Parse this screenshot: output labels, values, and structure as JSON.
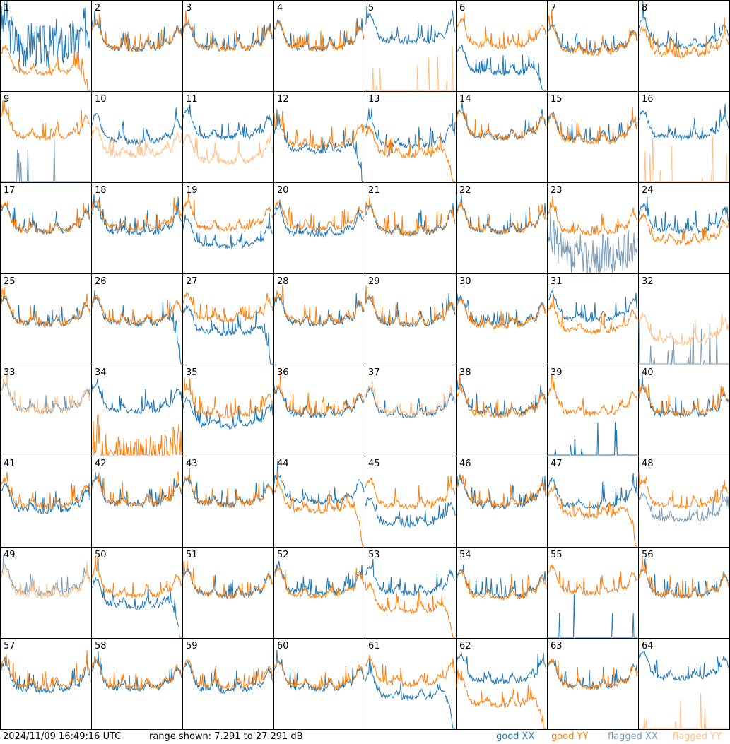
{
  "footer": {
    "timestamp": "2024/11/09 16:49:16 UTC",
    "range_text": "range shown: 7.291 to 27.291 dB",
    "legend": [
      {
        "label": "good XX",
        "color": "#1f77b4"
      },
      {
        "label": "good YY",
        "color": "#ff7f0e"
      },
      {
        "label": "flagged XX",
        "color": "#7a9bb5"
      },
      {
        "label": "flagged YY",
        "color": "#ffbf87"
      }
    ]
  },
  "chart_data": {
    "type": "line",
    "layout": "8x8 small multiples",
    "range_db": [
      7.291,
      27.291
    ],
    "colors": {
      "good_xx": "#1f77b4",
      "good_yy": "#ff7f0e",
      "flagged_xx": "#7a9bb5",
      "flagged_yy": "#ffbf87"
    },
    "panels": [
      {
        "label": "1",
        "xx": "good",
        "yy": "good",
        "xx_level": 0.55,
        "yy_level": 0.25,
        "xx_drop": false,
        "yy_drop": true,
        "xx_spiky": true,
        "yy_spiky": false
      },
      {
        "label": "2",
        "xx": "good",
        "yy": "good",
        "xx_level": 0.52,
        "yy_level": 0.52
      },
      {
        "label": "3",
        "xx": "good",
        "yy": "good",
        "xx_level": 0.52,
        "yy_level": 0.52
      },
      {
        "label": "4",
        "xx": "good",
        "yy": "good",
        "xx_level": 0.52,
        "yy_level": 0.52
      },
      {
        "label": "5",
        "xx": "good",
        "yy": "flagged",
        "xx_level": 0.6,
        "yy_level": 0.0,
        "yy_flat": true
      },
      {
        "label": "6",
        "xx": "good",
        "yy": "good",
        "xx_level": 0.25,
        "yy_level": 0.55,
        "xx_drop": true
      },
      {
        "label": "7",
        "xx": "good",
        "yy": "good",
        "xx_level": 0.5,
        "yy_level": 0.48
      },
      {
        "label": "8",
        "xx": "good",
        "yy": "good",
        "xx_level": 0.55,
        "yy_level": 0.45
      },
      {
        "label": "9",
        "xx": "flagged",
        "yy": "good",
        "xx_level": 0.0,
        "yy_level": 0.55,
        "xx_flat": true
      },
      {
        "label": "10",
        "xx": "good",
        "yy": "flagged",
        "xx_level": 0.5,
        "yy_level": 0.35
      },
      {
        "label": "11",
        "xx": "good",
        "yy": "flagged",
        "xx_level": 0.55,
        "yy_level": 0.28
      },
      {
        "label": "12",
        "xx": "good",
        "yy": "good",
        "xx_level": 0.4,
        "yy_level": 0.45,
        "xx_drop": true
      },
      {
        "label": "13",
        "xx": "good",
        "yy": "good",
        "xx_level": 0.45,
        "yy_level": 0.35,
        "yy_drop": true
      },
      {
        "label": "14",
        "xx": "good",
        "yy": "good",
        "xx_level": 0.55,
        "yy_level": 0.55
      },
      {
        "label": "15",
        "xx": "good",
        "yy": "good",
        "xx_level": 0.52,
        "yy_level": 0.5
      },
      {
        "label": "16",
        "xx": "good",
        "yy": "flagged",
        "xx_level": 0.55,
        "yy_level": 0.0,
        "yy_flat": true
      },
      {
        "label": "17",
        "xx": "good",
        "yy": "good",
        "xx_level": 0.52,
        "yy_level": 0.52
      },
      {
        "label": "18",
        "xx": "good",
        "yy": "good",
        "xx_level": 0.5,
        "yy_level": 0.55
      },
      {
        "label": "19",
        "xx": "good",
        "yy": "good",
        "xx_level": 0.35,
        "yy_level": 0.55
      },
      {
        "label": "20",
        "xx": "good",
        "yy": "good",
        "xx_level": 0.48,
        "yy_level": 0.55
      },
      {
        "label": "21",
        "xx": "good",
        "yy": "good",
        "xx_level": 0.5,
        "yy_level": 0.5
      },
      {
        "label": "22",
        "xx": "good",
        "yy": "good",
        "xx_level": 0.52,
        "yy_level": 0.52
      },
      {
        "label": "23",
        "xx": "flagged",
        "yy": "good",
        "xx_level": 0.2,
        "yy_level": 0.5,
        "xx_spiky": true
      },
      {
        "label": "24",
        "xx": "good",
        "yy": "good",
        "xx_level": 0.52,
        "yy_level": 0.4
      },
      {
        "label": "25",
        "xx": "good",
        "yy": "good",
        "xx_level": 0.5,
        "yy_level": 0.5
      },
      {
        "label": "26",
        "xx": "good",
        "yy": "good",
        "xx_level": 0.5,
        "yy_level": 0.52,
        "xx_drop": true
      },
      {
        "label": "27",
        "xx": "good",
        "yy": "good",
        "xx_level": 0.4,
        "yy_level": 0.55,
        "xx_drop": true
      },
      {
        "label": "28",
        "xx": "good",
        "yy": "good",
        "xx_level": 0.5,
        "yy_level": 0.52
      },
      {
        "label": "29",
        "xx": "good",
        "yy": "good",
        "xx_level": 0.5,
        "yy_level": 0.5
      },
      {
        "label": "30",
        "xx": "good",
        "yy": "good",
        "xx_level": 0.5,
        "yy_level": 0.48
      },
      {
        "label": "31",
        "xx": "good",
        "yy": "good",
        "xx_level": 0.55,
        "yy_level": 0.42
      },
      {
        "label": "32",
        "xx": "flagged",
        "yy": "flagged",
        "xx_level": 0.0,
        "yy_level": 0.3,
        "xx_flat": true
      },
      {
        "label": "33",
        "xx": "flagged",
        "yy": "flagged",
        "xx_level": 0.55,
        "yy_level": 0.55
      },
      {
        "label": "34",
        "xx": "good",
        "yy": "good",
        "xx_level": 0.55,
        "yy_level": 0.0,
        "yy_spiky": true
      },
      {
        "label": "35",
        "xx": "good",
        "yy": "good",
        "xx_level": 0.38,
        "yy_level": 0.5
      },
      {
        "label": "36",
        "xx": "good",
        "yy": "good",
        "xx_level": 0.5,
        "yy_level": 0.52
      },
      {
        "label": "37",
        "xx": "good",
        "yy": "flagged",
        "xx_level": 0.5,
        "yy_level": 0.52
      },
      {
        "label": "38",
        "xx": "good",
        "yy": "good",
        "xx_level": 0.52,
        "yy_level": 0.5
      },
      {
        "label": "39",
        "xx": "good",
        "yy": "good",
        "xx_level": 0.0,
        "yy_level": 0.52,
        "xx_flat": true
      },
      {
        "label": "40",
        "xx": "good",
        "yy": "good",
        "xx_level": 0.5,
        "yy_level": 0.52
      },
      {
        "label": "41",
        "xx": "good",
        "yy": "good",
        "xx_level": 0.45,
        "yy_level": 0.5
      },
      {
        "label": "42",
        "xx": "good",
        "yy": "good",
        "xx_level": 0.52,
        "yy_level": 0.52
      },
      {
        "label": "43",
        "xx": "good",
        "yy": "good",
        "xx_level": 0.52,
        "yy_level": 0.52
      },
      {
        "label": "44",
        "xx": "good",
        "yy": "good",
        "xx_level": 0.55,
        "yy_level": 0.45,
        "yy_drop": true
      },
      {
        "label": "45",
        "xx": "good",
        "yy": "good",
        "xx_level": 0.3,
        "yy_level": 0.5
      },
      {
        "label": "46",
        "xx": "good",
        "yy": "good",
        "xx_level": 0.5,
        "yy_level": 0.52
      },
      {
        "label": "47",
        "xx": "good",
        "yy": "good",
        "xx_level": 0.5,
        "yy_level": 0.4,
        "yy_drop": true
      },
      {
        "label": "48",
        "xx": "flagged",
        "yy": "good",
        "xx_level": 0.35,
        "yy_level": 0.5
      },
      {
        "label": "49",
        "xx": "flagged",
        "yy": "flagged",
        "xx_level": 0.55,
        "yy_level": 0.52
      },
      {
        "label": "50",
        "xx": "good",
        "yy": "good",
        "xx_level": 0.4,
        "yy_level": 0.52,
        "xx_drop": true
      },
      {
        "label": "51",
        "xx": "good",
        "yy": "good",
        "xx_level": 0.52,
        "yy_level": 0.52
      },
      {
        "label": "52",
        "xx": "good",
        "yy": "good",
        "xx_level": 0.55,
        "yy_level": 0.52
      },
      {
        "label": "53",
        "xx": "good",
        "yy": "good",
        "xx_level": 0.55,
        "yy_level": 0.35,
        "yy_drop": true
      },
      {
        "label": "54",
        "xx": "good",
        "yy": "good",
        "xx_level": 0.52,
        "yy_level": 0.5
      },
      {
        "label": "55",
        "xx": "good",
        "yy": "good",
        "xx_level": 0.0,
        "yy_level": 0.55,
        "xx_flat": true
      },
      {
        "label": "56",
        "xx": "good",
        "yy": "good",
        "xx_level": 0.52,
        "yy_level": 0.52
      },
      {
        "label": "57",
        "xx": "good",
        "yy": "good",
        "xx_level": 0.48,
        "yy_level": 0.52
      },
      {
        "label": "58",
        "xx": "good",
        "yy": "good",
        "xx_level": 0.5,
        "yy_level": 0.52
      },
      {
        "label": "59",
        "xx": "good",
        "yy": "good",
        "xx_level": 0.48,
        "yy_level": 0.52
      },
      {
        "label": "60",
        "xx": "good",
        "yy": "good",
        "xx_level": 0.5,
        "yy_level": 0.52
      },
      {
        "label": "61",
        "xx": "good",
        "yy": "good",
        "xx_level": 0.4,
        "yy_level": 0.55,
        "xx_drop": true
      },
      {
        "label": "62",
        "xx": "good",
        "yy": "good",
        "xx_level": 0.58,
        "yy_level": 0.32,
        "yy_drop": true
      },
      {
        "label": "63",
        "xx": "good",
        "yy": "good",
        "xx_level": 0.52,
        "yy_level": 0.52
      },
      {
        "label": "64",
        "xx": "good",
        "yy": "flagged",
        "xx_level": 0.62,
        "yy_level": 0.0,
        "yy_flat": true
      }
    ]
  }
}
